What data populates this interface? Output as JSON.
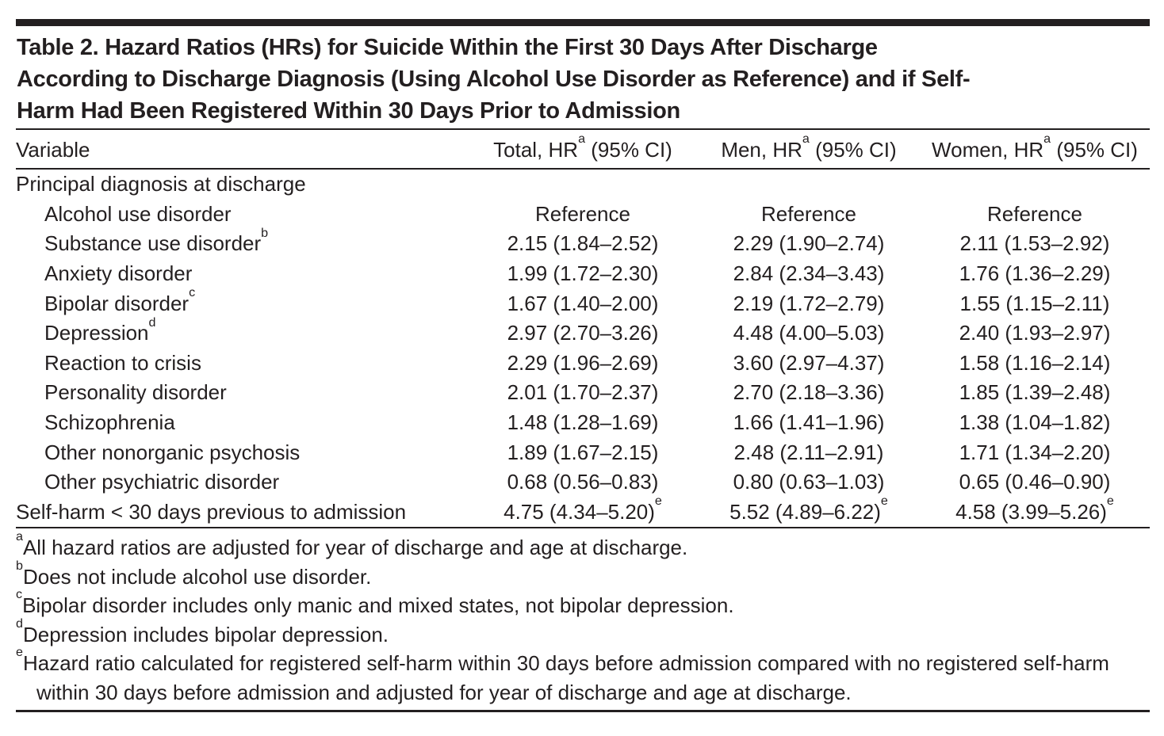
{
  "table": {
    "title_lines": [
      "Table 2. Hazard Ratios (HRs) for Suicide Within the First 30 Days After Discharge",
      "According to Discharge Diagnosis (Using Alcohol Use Disorder as Reference) and if Self-",
      "Harm Had Been Registered Within 30 Days Prior to Admission"
    ],
    "columns": {
      "variable": "Variable",
      "total": {
        "pre": "Total, HR",
        "sup": "a",
        "post": " (95% CI)"
      },
      "men": {
        "pre": "Men, HR",
        "sup": "a",
        "post": " (95% CI)"
      },
      "women": {
        "pre": "Women, HR",
        "sup": "a",
        "post": " (95% CI)"
      }
    },
    "rows": [
      {
        "label": "Principal diagnosis at discharge",
        "label_sup": "",
        "indent": false,
        "total": "",
        "total_sup": "",
        "men": "",
        "men_sup": "",
        "women": "",
        "women_sup": ""
      },
      {
        "label": "Alcohol use disorder",
        "label_sup": "",
        "indent": true,
        "total": "Reference",
        "total_sup": "",
        "men": "Reference",
        "men_sup": "",
        "women": "Reference",
        "women_sup": ""
      },
      {
        "label": "Substance use disorder",
        "label_sup": "b",
        "indent": true,
        "total": "2.15 (1.84–2.52)",
        "total_sup": "",
        "men": "2.29 (1.90–2.74)",
        "men_sup": "",
        "women": "2.11 (1.53–2.92)",
        "women_sup": ""
      },
      {
        "label": "Anxiety disorder",
        "label_sup": "",
        "indent": true,
        "total": "1.99 (1.72–2.30)",
        "total_sup": "",
        "men": "2.84 (2.34–3.43)",
        "men_sup": "",
        "women": "1.76 (1.36–2.29)",
        "women_sup": ""
      },
      {
        "label": "Bipolar disorder",
        "label_sup": "c",
        "indent": true,
        "total": "1.67 (1.40–2.00)",
        "total_sup": "",
        "men": "2.19 (1.72–2.79)",
        "men_sup": "",
        "women": "1.55 (1.15–2.11)",
        "women_sup": ""
      },
      {
        "label": "Depression",
        "label_sup": "d",
        "indent": true,
        "total": "2.97 (2.70–3.26)",
        "total_sup": "",
        "men": "4.48 (4.00–5.03)",
        "men_sup": "",
        "women": "2.40 (1.93–2.97)",
        "women_sup": ""
      },
      {
        "label": "Reaction to crisis",
        "label_sup": "",
        "indent": true,
        "total": "2.29 (1.96–2.69)",
        "total_sup": "",
        "men": "3.60 (2.97–4.37)",
        "men_sup": "",
        "women": "1.58 (1.16–2.14)",
        "women_sup": ""
      },
      {
        "label": "Personality disorder",
        "label_sup": "",
        "indent": true,
        "total": "2.01 (1.70–2.37)",
        "total_sup": "",
        "men": "2.70 (2.18–3.36)",
        "men_sup": "",
        "women": "1.85 (1.39–2.48)",
        "women_sup": ""
      },
      {
        "label": "Schizophrenia",
        "label_sup": "",
        "indent": true,
        "total": "1.48 (1.28–1.69)",
        "total_sup": "",
        "men": "1.66 (1.41–1.96)",
        "men_sup": "",
        "women": "1.38 (1.04–1.82)",
        "women_sup": ""
      },
      {
        "label": "Other nonorganic psychosis",
        "label_sup": "",
        "indent": true,
        "total": "1.89 (1.67–2.15)",
        "total_sup": "",
        "men": "2.48 (2.11–2.91)",
        "men_sup": "",
        "women": "1.71 (1.34–2.20)",
        "women_sup": ""
      },
      {
        "label": "Other psychiatric disorder",
        "label_sup": "",
        "indent": true,
        "total": "0.68 (0.56–0.83)",
        "total_sup": "",
        "men": "0.80 (0.63–1.03)",
        "men_sup": "",
        "women": "0.65 (0.46–0.90)",
        "women_sup": ""
      },
      {
        "label": "Self-harm < 30 days previous to admission",
        "label_sup": "",
        "indent": false,
        "total": "4.75 (4.34–5.20)",
        "total_sup": "e",
        "men": "5.52 (4.89–6.22)",
        "men_sup": "e",
        "women": "4.58 (3.99–5.26)",
        "women_sup": "e"
      }
    ],
    "footnotes": [
      {
        "marker": "a",
        "text": "All hazard ratios are adjusted for year of discharge and age at discharge."
      },
      {
        "marker": "b",
        "text": "Does not include alcohol use disorder."
      },
      {
        "marker": "c",
        "text": "Bipolar disorder includes only manic and mixed states, not bipolar depression."
      },
      {
        "marker": "d",
        "text": "Depression includes bipolar depression."
      },
      {
        "marker": "e",
        "text": "Hazard ratio calculated for registered self-harm within 30 days before admission compared with no registered self-harm within 30 days before admission and adjusted for year of discharge and age at discharge."
      }
    ],
    "colors": {
      "ink": "#231f20",
      "background": "#ffffff"
    }
  }
}
